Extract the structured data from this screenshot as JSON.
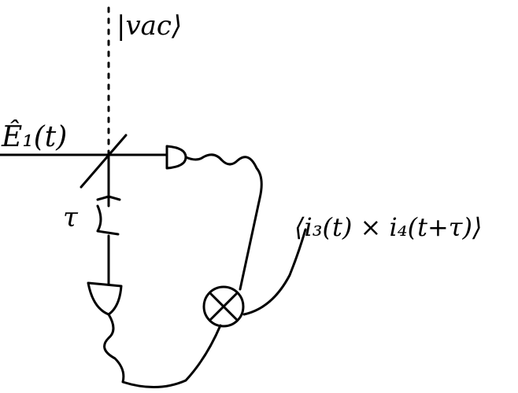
{
  "labels": {
    "vacuum": "|vac⟩",
    "field": "Ê₁(t)",
    "delay": "τ",
    "correlation": "⟨i₃(t) × i₄(t+τ)⟩"
  },
  "icons": {
    "beamsplitter": "beamsplitter-icon",
    "detector_top": "photodetector-icon",
    "detector_bottom": "photodetector-icon",
    "mixer": "multiplier-icon"
  }
}
